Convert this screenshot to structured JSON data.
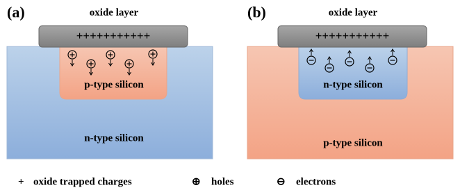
{
  "panels": [
    {
      "label": "(a)",
      "oxide_label": "oxide layer",
      "oxide_charges": "+++++++++++",
      "inner_label": "p-type silicon",
      "outer_label": "n-type silicon"
    },
    {
      "label": "(b)",
      "oxide_label": "oxide layer",
      "oxide_charges": "+++++++++++",
      "inner_label": "n-type silicon",
      "outer_label": "p-type silicon"
    }
  ],
  "legend": [
    {
      "symbol": "+",
      "label": "oxide trapped charges"
    },
    {
      "symbol": "⊕",
      "label": "holes"
    },
    {
      "symbol": "⊖",
      "label": "electrons"
    }
  ]
}
